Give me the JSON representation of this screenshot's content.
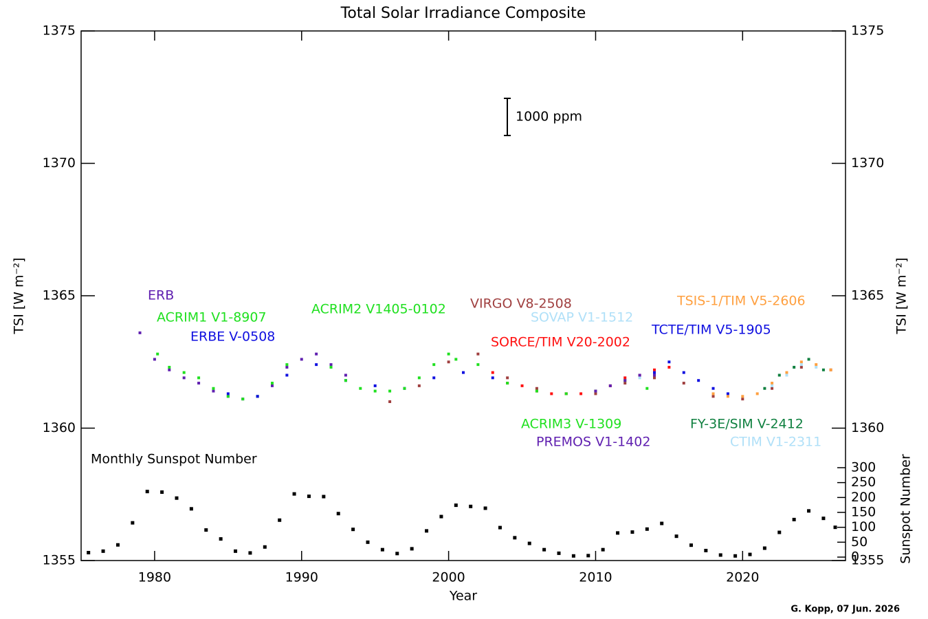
{
  "chart_data": {
    "type": "scatter",
    "title": "Total Solar Irradiance Composite",
    "xlabel": "Year",
    "ylabel": "TSI [W m⁻²]",
    "y2label": "Sunspot Number",
    "annotations": [
      "1000 ppm",
      "G. Kopp, 07 Jun. 2026"
    ],
    "xlim": [
      1975,
      2027
    ],
    "xticks": [
      1980,
      1990,
      2000,
      2010,
      2020
    ],
    "ylim": [
      1355,
      1375
    ],
    "yticks": [
      1355,
      1360,
      1365,
      1370,
      1375
    ],
    "y2lim": [
      -11.5,
      1765
    ],
    "y2ticks": [
      0,
      50,
      100,
      150,
      200,
      250,
      300
    ],
    "series": [
      {
        "name": "ERB",
        "color": "#6020b0",
        "x": [
          1979,
          1980,
          1981,
          1982,
          1983,
          1984,
          1985,
          1986,
          1987,
          1988,
          1989,
          1990,
          1991,
          1992,
          1993
        ],
        "values": [
          1363.6,
          1362.6,
          1362.2,
          1361.9,
          1361.7,
          1361.4,
          1361.2,
          1361.1,
          1361.2,
          1361.6,
          1362.3,
          1362.6,
          1362.8,
          1362.4,
          1362.0
        ]
      },
      {
        "name": "ACRIM1 V1-8907",
        "color": "#20e020",
        "x": [
          1980.2,
          1981,
          1982,
          1983,
          1984,
          1985,
          1986,
          1987,
          1988,
          1989
        ],
        "values": [
          1362.8,
          1362.3,
          1362.1,
          1361.9,
          1361.5,
          1361.2,
          1361.1,
          1361.2,
          1361.7,
          1362.4
        ]
      },
      {
        "name": "ERBE V-0508",
        "color": "#1010e0",
        "x": [
          1985,
          1987,
          1989,
          1991,
          1993,
          1995,
          1997,
          1999,
          2001,
          2003
        ],
        "values": [
          1361.3,
          1361.2,
          1362.0,
          1362.4,
          1361.8,
          1361.6,
          1361.5,
          1361.9,
          1362.1,
          1361.9
        ]
      },
      {
        "name": "ACRIM2 V1405-0102",
        "color": "#20e020",
        "x": [
          1992,
          1993,
          1994,
          1995,
          1996,
          1997,
          1998,
          1999,
          2000
        ],
        "values": [
          1362.3,
          1361.8,
          1361.5,
          1361.4,
          1361.4,
          1361.5,
          1361.9,
          1362.4,
          1362.8
        ]
      },
      {
        "name": "VIRGO V8-2508",
        "color": "#a04040",
        "x": [
          1996,
          1998,
          2000,
          2002,
          2004,
          2006,
          2008,
          2010,
          2012,
          2014,
          2016,
          2018,
          2020,
          2022,
          2024,
          2026
        ],
        "values": [
          1361.0,
          1361.6,
          1362.5,
          1362.8,
          1361.9,
          1361.5,
          1361.3,
          1361.3,
          1361.7,
          1361.9,
          1361.7,
          1361.2,
          1361.1,
          1361.5,
          1362.3,
          1362.2
        ]
      },
      {
        "name": "SOVAP V1-1512",
        "color": "#b0e0f8",
        "x": [
          2010,
          2011,
          2012,
          2013
        ],
        "values": [
          1361.4,
          1361.6,
          1361.9,
          1361.9
        ]
      },
      {
        "name": "SORCE/TIM V20-2002",
        "color": "#ff1010",
        "x": [
          2003,
          2004,
          2005,
          2006,
          2007,
          2008,
          2009,
          2010,
          2011,
          2012,
          2013,
          2014,
          2015
        ],
        "values": [
          1362.1,
          1361.7,
          1361.6,
          1361.4,
          1361.3,
          1361.3,
          1361.3,
          1361.4,
          1361.6,
          1361.9,
          1362.0,
          1362.2,
          1362.3
        ]
      },
      {
        "name": "TCTE/TIM V5-1905",
        "color": "#1010e0",
        "x": [
          2014,
          2015,
          2016,
          2017,
          2018,
          2019
        ],
        "values": [
          1362.1,
          1362.5,
          1362.1,
          1361.8,
          1361.5,
          1361.3
        ]
      },
      {
        "name": "TSIS-1/TIM V5-2606",
        "color": "#ffa040",
        "x": [
          2018,
          2019,
          2020,
          2021,
          2022,
          2023,
          2024,
          2025,
          2026
        ],
        "values": [
          1361.3,
          1361.2,
          1361.2,
          1361.3,
          1361.7,
          1362.1,
          1362.5,
          1362.4,
          1362.2
        ]
      },
      {
        "name": "ACRIM3 V-1309",
        "color": "#20e020",
        "x": [
          2000.5,
          2002,
          2004,
          2006,
          2008,
          2010,
          2012,
          2013.5
        ],
        "values": [
          1362.6,
          1362.4,
          1361.7,
          1361.4,
          1361.3,
          1361.4,
          1361.8,
          1361.5
        ]
      },
      {
        "name": "PREMOS V1-1402",
        "color": "#6020b0",
        "x": [
          2010,
          2011,
          2012,
          2013,
          2014
        ],
        "values": [
          1361.4,
          1361.6,
          1361.8,
          1362.0,
          1362.0
        ]
      },
      {
        "name": "FY-3E/SIM V-2412",
        "color": "#108040",
        "x": [
          2021.5,
          2022.5,
          2023.5,
          2024.5,
          2025.5
        ],
        "values": [
          1361.5,
          1362.0,
          1362.3,
          1362.6,
          1362.2
        ]
      },
      {
        "name": "CTIM V1-2311",
        "color": "#b0e0f8",
        "x": [
          2022,
          2023,
          2024,
          2025
        ],
        "values": [
          1361.6,
          1362.0,
          1362.4,
          1362.3
        ]
      },
      {
        "name": "Monthly Sunspot Number",
        "color": "#000000",
        "axis": "y2",
        "x": [
          1975.5,
          1976.5,
          1977.5,
          1978.5,
          1979.5,
          1980.5,
          1981.5,
          1982.5,
          1983.5,
          1984.5,
          1985.5,
          1986.5,
          1987.5,
          1988.5,
          1989.5,
          1990.5,
          1991.5,
          1992.5,
          1993.5,
          1994.5,
          1995.5,
          1996.5,
          1997.5,
          1998.5,
          1999.5,
          2000.5,
          2001.5,
          2002.5,
          2003.5,
          2004.5,
          2005.5,
          2006.5,
          2007.5,
          2008.5,
          2009.5,
          2010.5,
          2011.5,
          2012.5,
          2013.5,
          2014.5,
          2015.5,
          2016.5,
          2017.5,
          2018.5,
          2019.5,
          2020.5,
          2021.5,
          2022.5,
          2023.5,
          2024.5,
          2025.5,
          2026.3
        ],
        "values": [
          15,
          20,
          41,
          115,
          220,
          218,
          198,
          162,
          91,
          61,
          20,
          14,
          34,
          124,
          212,
          204,
          203,
          146,
          93,
          50,
          25,
          12,
          28,
          88,
          136,
          174,
          170,
          164,
          99,
          65,
          46,
          25,
          13,
          4,
          5,
          25,
          81,
          84,
          94,
          113,
          70,
          40,
          22,
          7,
          4,
          9,
          30,
          83,
          126,
          155,
          130,
          100
        ]
      }
    ]
  }
}
